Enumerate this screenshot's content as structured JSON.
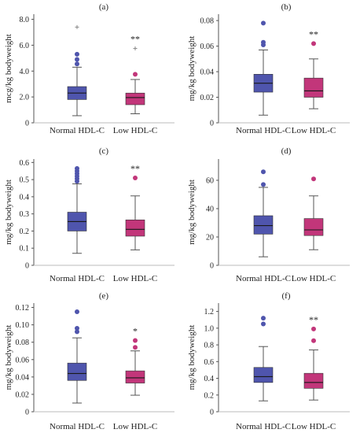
{
  "colors": {
    "normal": "#4f55ad",
    "low": "#c2367a",
    "axis": "#555555",
    "whisker": "#555555"
  },
  "chart_data": [
    {
      "type": "box",
      "panel": "(a)",
      "ylabel": "mcg/kg bodyweight",
      "ylim": [
        0,
        8.4
      ],
      "yticks": [
        0,
        2.0,
        4.0,
        6.0,
        8.0
      ],
      "ytick_labels": [
        "0",
        "2.0",
        "4.0",
        "6.0",
        "8.0"
      ],
      "categories": [
        "Normal HDL-C",
        "Low HDL-C"
      ],
      "significance": "**",
      "boxes": [
        {
          "q1": 1.8,
          "median": 2.3,
          "q3": 2.8,
          "whisker_low": 0.55,
          "whisker_high": 4.3,
          "outliers": [
            {
              "y": 4.55,
              "shape": "circle"
            },
            {
              "y": 4.9,
              "shape": "circle"
            },
            {
              "y": 5.3,
              "shape": "circle"
            },
            {
              "y": 7.4,
              "shape": "plus"
            }
          ]
        },
        {
          "q1": 1.4,
          "median": 1.95,
          "q3": 2.3,
          "whisker_low": 0.7,
          "whisker_high": 3.35,
          "outliers": [
            {
              "y": 3.75,
              "shape": "circle"
            },
            {
              "y": 5.75,
              "shape": "plus"
            }
          ]
        }
      ]
    },
    {
      "type": "box",
      "panel": "(b)",
      "ylabel": "mg/kg bodyweight",
      "ylim": [
        0,
        0.085
      ],
      "yticks": [
        0,
        0.02,
        0.04,
        0.06,
        0.08
      ],
      "ytick_labels": [
        "0",
        "0.02",
        "0.04",
        "0.06",
        "0.08"
      ],
      "categories": [
        "Normal HDL-C",
        "Low HDL-C"
      ],
      "significance": "**",
      "boxes": [
        {
          "q1": 0.024,
          "median": 0.031,
          "q3": 0.038,
          "whisker_low": 0.006,
          "whisker_high": 0.057,
          "outliers": [
            {
              "y": 0.061,
              "shape": "circle"
            },
            {
              "y": 0.063,
              "shape": "circle"
            },
            {
              "y": 0.078,
              "shape": "circle"
            }
          ]
        },
        {
          "q1": 0.02,
          "median": 0.025,
          "q3": 0.035,
          "whisker_low": 0.011,
          "whisker_high": 0.05,
          "outliers": [
            {
              "y": 0.062,
              "shape": "circle"
            }
          ]
        }
      ]
    },
    {
      "type": "box",
      "panel": "(c)",
      "ylabel": "mg/kg bodyweight",
      "ylim": [
        0,
        0.62
      ],
      "yticks": [
        0,
        0.1,
        0.2,
        0.3,
        0.4,
        0.5,
        0.6
      ],
      "ytick_labels": [
        "0",
        "0.1",
        "0.2",
        "0.3",
        "0.4",
        "0.5",
        "0.6"
      ],
      "categories": [
        "Normal HDL-C",
        "Low HDL-C"
      ],
      "significance": "**",
      "boxes": [
        {
          "q1": 0.2,
          "median": 0.255,
          "q3": 0.31,
          "whisker_low": 0.07,
          "whisker_high": 0.475,
          "outliers": [
            {
              "y": 0.49,
              "shape": "circle"
            },
            {
              "y": 0.505,
              "shape": "circle"
            },
            {
              "y": 0.52,
              "shape": "circle"
            },
            {
              "y": 0.535,
              "shape": "circle"
            },
            {
              "y": 0.55,
              "shape": "circle"
            },
            {
              "y": 0.565,
              "shape": "circle"
            }
          ]
        },
        {
          "q1": 0.17,
          "median": 0.21,
          "q3": 0.265,
          "whisker_low": 0.09,
          "whisker_high": 0.405,
          "outliers": [
            {
              "y": 0.51,
              "shape": "circle"
            }
          ]
        }
      ]
    },
    {
      "type": "box",
      "panel": "(d)",
      "ylabel": "mg/kg bodyweight",
      "ylim": [
        0,
        75
      ],
      "yticks": [
        0,
        20,
        40,
        60
      ],
      "ytick_labels": [
        "0",
        "20",
        "40",
        "60"
      ],
      "categories": [
        "Normal HDL-C",
        "Low HDL-C"
      ],
      "significance": "",
      "boxes": [
        {
          "q1": 22,
          "median": 28,
          "q3": 35,
          "whisker_low": 6,
          "whisker_high": 55,
          "outliers": [
            {
              "y": 57,
              "shape": "circle"
            },
            {
              "y": 66,
              "shape": "circle"
            }
          ]
        },
        {
          "q1": 21,
          "median": 25,
          "q3": 33,
          "whisker_low": 11,
          "whisker_high": 49,
          "outliers": [
            {
              "y": 61,
              "shape": "circle"
            }
          ]
        }
      ]
    },
    {
      "type": "box",
      "panel": "(e)",
      "ylabel": "mg/kg bodyweight",
      "ylim": [
        0,
        0.125
      ],
      "yticks": [
        0,
        0.02,
        0.04,
        0.06,
        0.08,
        0.1,
        0.12
      ],
      "ytick_labels": [
        "0",
        "0.02",
        "0.04",
        "0.06",
        "0.08",
        "0.10",
        "0.12"
      ],
      "categories": [
        "Normal HDL-C",
        "Low HDL-C"
      ],
      "significance": "*",
      "boxes": [
        {
          "q1": 0.036,
          "median": 0.044,
          "q3": 0.056,
          "whisker_low": 0.01,
          "whisker_high": 0.085,
          "outliers": [
            {
              "y": 0.092,
              "shape": "circle"
            },
            {
              "y": 0.096,
              "shape": "circle"
            },
            {
              "y": 0.115,
              "shape": "circle"
            }
          ]
        },
        {
          "q1": 0.033,
          "median": 0.039,
          "q3": 0.047,
          "whisker_low": 0.019,
          "whisker_high": 0.07,
          "outliers": [
            {
              "y": 0.074,
              "shape": "circle"
            },
            {
              "y": 0.082,
              "shape": "circle"
            }
          ]
        }
      ]
    },
    {
      "type": "box",
      "panel": "(f)",
      "ylabel": "mg/kg bodyweight",
      "ylim": [
        0,
        1.3
      ],
      "yticks": [
        0,
        0.2,
        0.4,
        0.6,
        0.8,
        1.0,
        1.2
      ],
      "ytick_labels": [
        "0",
        "0.2",
        "0.4",
        "0.6",
        "0.8",
        "1.0",
        "1.2"
      ],
      "categories": [
        "Normal HDL-C",
        "Low HDL-C"
      ],
      "significance": "**",
      "boxes": [
        {
          "q1": 0.35,
          "median": 0.42,
          "q3": 0.53,
          "whisker_low": 0.13,
          "whisker_high": 0.78,
          "outliers": [
            {
              "y": 1.05,
              "shape": "circle"
            },
            {
              "y": 1.12,
              "shape": "circle"
            }
          ]
        },
        {
          "q1": 0.28,
          "median": 0.35,
          "q3": 0.46,
          "whisker_low": 0.14,
          "whisker_high": 0.74,
          "outliers": [
            {
              "y": 0.85,
              "shape": "circle"
            },
            {
              "y": 0.99,
              "shape": "circle"
            }
          ]
        }
      ]
    }
  ]
}
